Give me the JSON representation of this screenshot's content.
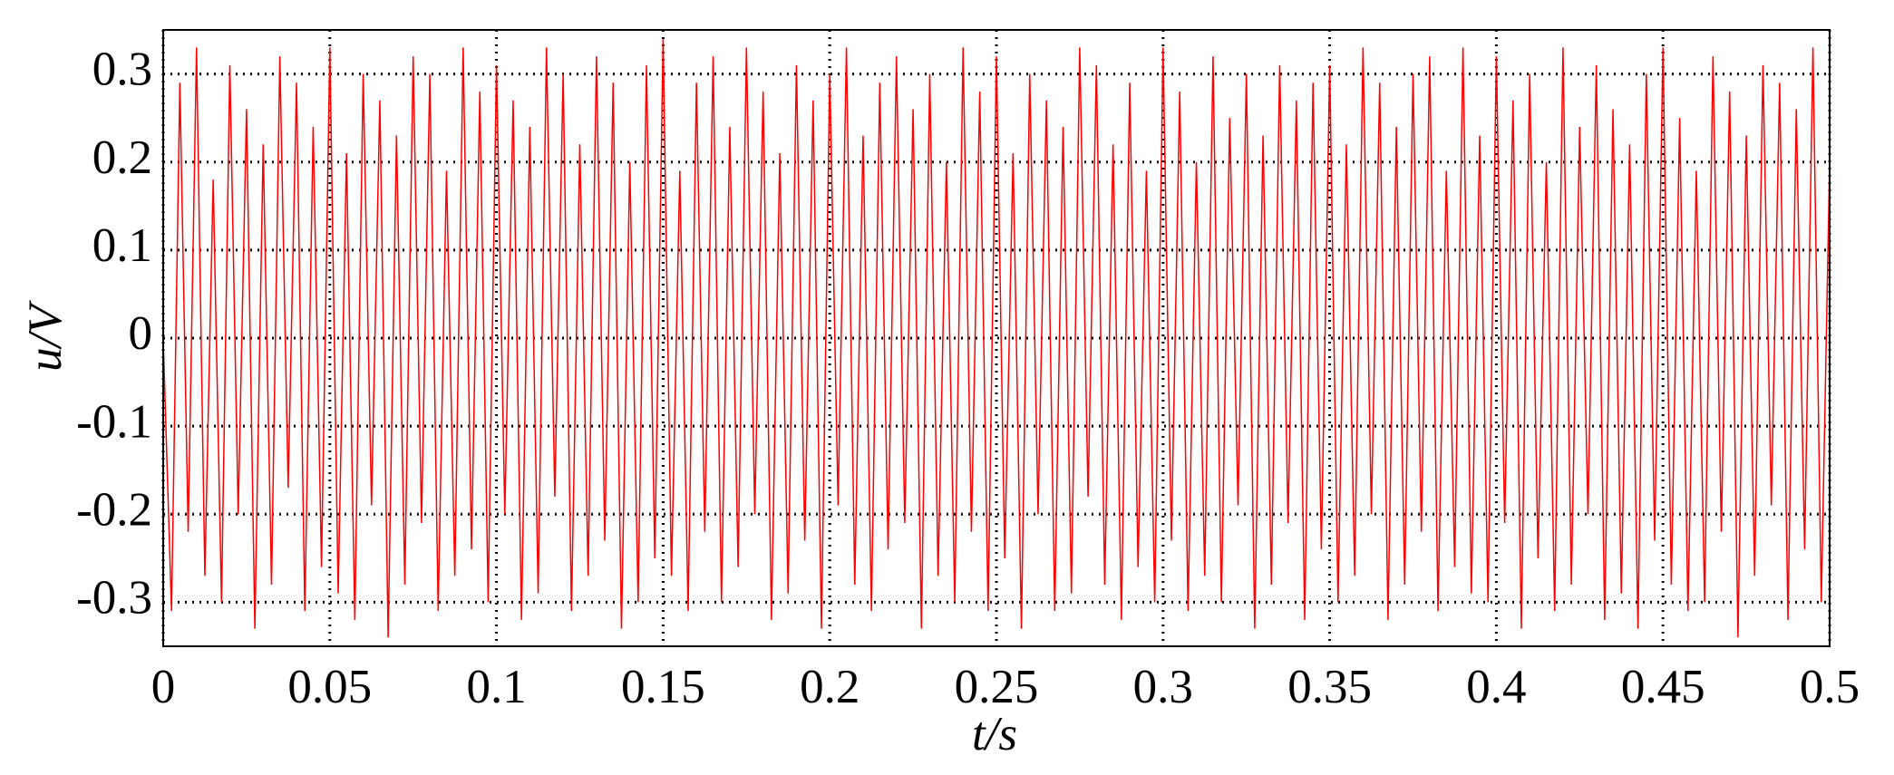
{
  "chart_data": {
    "type": "line",
    "x_label": "t/s",
    "y_label": "u/V",
    "color": "#ff0000",
    "x": [
      0,
      0.0025,
      0.005,
      0.0075,
      0.01,
      0.0125,
      0.015,
      0.0175,
      0.02,
      0.0225,
      0.025,
      0.0275,
      0.03,
      0.0325,
      0.035,
      0.0375,
      0.04,
      0.0425,
      0.045,
      0.0475,
      0.05,
      0.0525,
      0.055,
      0.0575,
      0.06,
      0.0625,
      0.065,
      0.0675,
      0.07,
      0.0725,
      0.075,
      0.0775,
      0.08,
      0.0825,
      0.085,
      0.0875,
      0.09,
      0.0925,
      0.095,
      0.0975,
      0.1,
      0.1025,
      0.105,
      0.1075,
      0.11,
      0.1125,
      0.115,
      0.1175,
      0.12,
      0.1225,
      0.125,
      0.1275,
      0.13,
      0.1325,
      0.135,
      0.1375,
      0.14,
      0.1425,
      0.145,
      0.1475,
      0.15,
      0.1525,
      0.155,
      0.1575,
      0.16,
      0.1625,
      0.165,
      0.1675,
      0.17,
      0.1725,
      0.175,
      0.1775,
      0.18,
      0.1825,
      0.185,
      0.1875,
      0.19,
      0.1925,
      0.195,
      0.1975,
      0.2,
      0.2025,
      0.205,
      0.2075,
      0.21,
      0.2125,
      0.215,
      0.2175,
      0.22,
      0.2225,
      0.225,
      0.2275,
      0.23,
      0.2325,
      0.235,
      0.2375,
      0.24,
      0.2425,
      0.245,
      0.2475,
      0.25,
      0.2525,
      0.255,
      0.2575,
      0.26,
      0.2625,
      0.265,
      0.2675,
      0.27,
      0.2725,
      0.275,
      0.2775,
      0.28,
      0.2825,
      0.285,
      0.2875,
      0.29,
      0.2925,
      0.295,
      0.2975,
      0.3,
      0.3025,
      0.305,
      0.3075,
      0.31,
      0.3125,
      0.315,
      0.3175,
      0.32,
      0.3225,
      0.325,
      0.3275,
      0.33,
      0.3325,
      0.335,
      0.3375,
      0.34,
      0.3425,
      0.345,
      0.3475,
      0.35,
      0.3525,
      0.355,
      0.3575,
      0.36,
      0.3625,
      0.365,
      0.3675,
      0.37,
      0.3725,
      0.375,
      0.3775,
      0.38,
      0.3825,
      0.385,
      0.3875,
      0.39,
      0.3925,
      0.395,
      0.3975,
      0.4,
      0.4025,
      0.405,
      0.4075,
      0.41,
      0.4125,
      0.415,
      0.4175,
      0.42,
      0.4225,
      0.425,
      0.4275,
      0.43,
      0.4325,
      0.435,
      0.4375,
      0.44,
      0.4425,
      0.445,
      0.4475,
      0.45,
      0.4525,
      0.455,
      0.4575,
      0.46,
      0.4625,
      0.465,
      0.4675,
      0.47,
      0.4725,
      0.475,
      0.4775,
      0.48,
      0.4825,
      0.485,
      0.4875,
      0.49,
      0.4925,
      0.495,
      0.4975,
      0.5
    ],
    "values": [
      0,
      -0.31,
      0.29,
      -0.22,
      0.33,
      -0.27,
      0.18,
      -0.3,
      0.31,
      -0.2,
      0.26,
      -0.33,
      0.22,
      -0.28,
      0.32,
      -0.17,
      0.29,
      -0.31,
      0.24,
      -0.26,
      0.33,
      -0.29,
      0.21,
      -0.32,
      0.3,
      -0.19,
      0.27,
      -0.34,
      0.23,
      -0.28,
      0.32,
      -0.21,
      0.3,
      -0.31,
      0.19,
      -0.27,
      0.33,
      -0.24,
      0.28,
      -0.3,
      0.31,
      -0.2,
      0.27,
      -0.32,
      0.24,
      -0.29,
      0.33,
      -0.18,
      0.3,
      -0.31,
      0.22,
      -0.27,
      0.32,
      -0.23,
      0.29,
      -0.33,
      0.2,
      -0.3,
      0.31,
      -0.25,
      0.34,
      -0.27,
      0.19,
      -0.31,
      0.29,
      -0.22,
      0.32,
      -0.3,
      0.24,
      -0.26,
      0.33,
      -0.2,
      0.28,
      -0.32,
      0.21,
      -0.29,
      0.31,
      -0.23,
      0.27,
      -0.33,
      0.3,
      -0.19,
      0.33,
      -0.28,
      0.23,
      -0.31,
      0.29,
      -0.24,
      0.32,
      -0.21,
      0.26,
      -0.33,
      0.3,
      -0.27,
      0.2,
      -0.3,
      0.33,
      -0.22,
      0.28,
      -0.31,
      0.32,
      -0.25,
      0.21,
      -0.33,
      0.3,
      -0.2,
      0.27,
      -0.31,
      0.24,
      -0.29,
      0.33,
      -0.18,
      0.31,
      -0.28,
      0.22,
      -0.32,
      0.29,
      -0.26,
      0.19,
      -0.3,
      0.33,
      -0.23,
      0.28,
      -0.31,
      0.2,
      -0.27,
      0.32,
      -0.3,
      0.25,
      -0.19,
      0.3,
      -0.33,
      0.23,
      -0.28,
      0.31,
      -0.21,
      0.27,
      -0.32,
      0.29,
      -0.24,
      0.31,
      -0.3,
      0.22,
      -0.27,
      0.33,
      -0.2,
      0.29,
      -0.32,
      0.24,
      -0.28,
      0.3,
      -0.22,
      0.32,
      -0.31,
      0.19,
      -0.26,
      0.33,
      -0.29,
      0.23,
      -0.3,
      0.32,
      -0.21,
      0.27,
      -0.33,
      0.3,
      -0.25,
      0.2,
      -0.31,
      0.33,
      -0.28,
      0.24,
      -0.2,
      0.31,
      -0.32,
      0.26,
      -0.29,
      0.22,
      -0.33,
      0.3,
      -0.23,
      0.33,
      -0.28,
      0.25,
      -0.31,
      0.19,
      -0.3,
      0.32,
      -0.22,
      0.28,
      -0.34,
      0.23,
      -0.27,
      0.31,
      -0.19,
      0.29,
      -0.32,
      0.26,
      -0.24,
      0.33,
      -0.3,
      0.2
    ],
    "xlim": [
      0,
      0.5
    ],
    "xticks": [
      0,
      0.05,
      0.1,
      0.15,
      0.2,
      0.25,
      0.3,
      0.35,
      0.4,
      0.45,
      0.5
    ],
    "ylim": [
      -0.35,
      0.35
    ],
    "yticks": [
      -0.3,
      -0.2,
      -0.1,
      0,
      0.1,
      0.2,
      0.3
    ],
    "grid": true
  }
}
